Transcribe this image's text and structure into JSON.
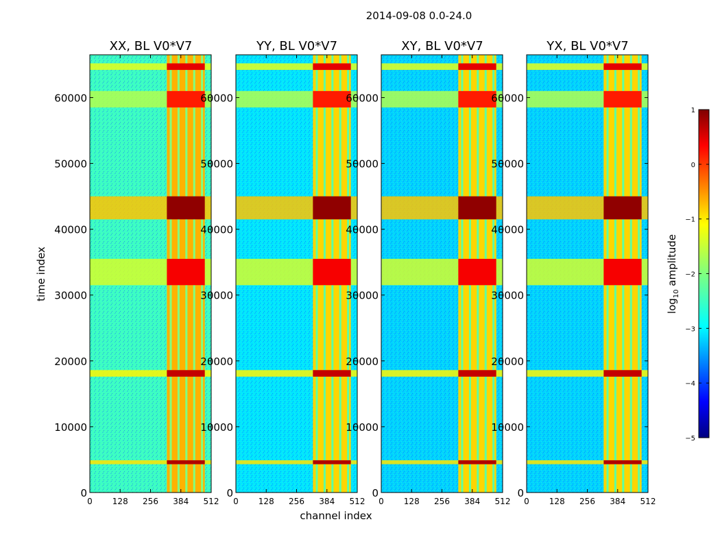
{
  "chart_data": {
    "type": "heatmap",
    "suptitle": "2014-09-08 0.0-24.0",
    "xlabel": "channel index",
    "ylabel": "time index",
    "xlim": [
      0,
      512
    ],
    "ylim": [
      0,
      66500
    ],
    "x_ticks": [
      0,
      128,
      256,
      384,
      512
    ],
    "y_ticks": [
      0,
      10000,
      20000,
      30000,
      40000,
      50000,
      60000
    ],
    "y_tick_labels": [
      "0",
      "10000",
      "20000",
      "30000",
      "40000",
      "50000",
      "60000"
    ],
    "panels": [
      {
        "title": "XX, BL V0*V7",
        "background_level": -2.4,
        "band_level": -0.8
      },
      {
        "title": "YY, BL V0*V7",
        "background_level": -2.9,
        "band_level": -1.0
      },
      {
        "title": "XY, BL V0*V7",
        "background_level": -3.0,
        "band_level": -1.0
      },
      {
        "title": "YX, BL V0*V7",
        "background_level": -3.0,
        "band_level": -1.0
      }
    ],
    "bright_channel_band": [
      325,
      485
    ],
    "rfi_time_bands": [
      {
        "t_start": 4300,
        "t_end": 4900,
        "level": 0.4
      },
      {
        "t_start": 17600,
        "t_end": 18600,
        "level": 0.3
      },
      {
        "t_start": 31500,
        "t_end": 35500,
        "level": 0.0
      },
      {
        "t_start": 41500,
        "t_end": 45000,
        "level": 0.6
      },
      {
        "t_start": 58500,
        "t_end": 61000,
        "level": -0.2
      },
      {
        "t_start": 64200,
        "t_end": 65200,
        "level": 0.1
      }
    ],
    "colorbar": {
      "label": "log10 amplitude",
      "label_main": "log",
      "label_sub": "10",
      "label_rest": " amplitude",
      "colormap": "jet",
      "range": [
        -5,
        1
      ],
      "ticks": [
        1,
        0,
        -1,
        -2,
        -3,
        -4,
        -5
      ],
      "tick_labels": [
        "1",
        "0",
        "−1",
        "−2",
        "−3",
        "−4",
        "−5"
      ]
    }
  }
}
